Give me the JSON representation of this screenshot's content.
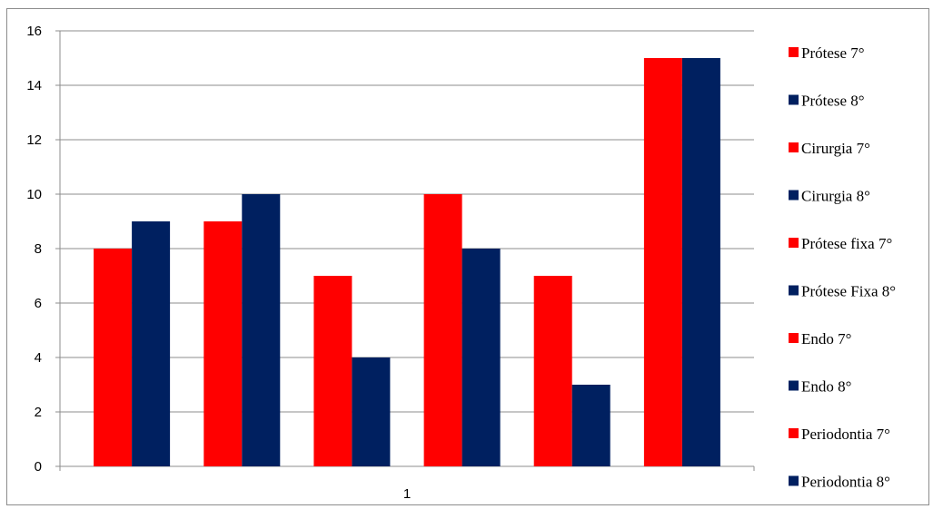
{
  "chart_data": {
    "type": "bar",
    "categories": [
      "1"
    ],
    "ylim": [
      0,
      16
    ],
    "yticks": [
      0,
      2,
      4,
      6,
      8,
      10,
      12,
      14,
      16
    ],
    "grid": true,
    "legend_position": "right",
    "series": [
      {
        "name": "Prótese 7°",
        "color": "#ff0000",
        "values": [
          8
        ]
      },
      {
        "name": "Prótese 8°",
        "color": "#002060",
        "values": [
          9
        ]
      },
      {
        "name": "Cirurgia 7°",
        "color": "#ff0000",
        "values": [
          9
        ]
      },
      {
        "name": "Cirurgia 8°",
        "color": "#002060",
        "values": [
          10
        ]
      },
      {
        "name": "Prótese fixa 7°",
        "color": "#ff0000",
        "values": [
          7
        ]
      },
      {
        "name": "Prótese Fixa 8°",
        "color": "#002060",
        "values": [
          4
        ]
      },
      {
        "name": "Endo 7°",
        "color": "#ff0000",
        "values": [
          10
        ]
      },
      {
        "name": "Endo 8°",
        "color": "#002060",
        "values": [
          8
        ]
      },
      {
        "name": "Periodontia 7°",
        "color": "#ff0000",
        "values": [
          7
        ]
      },
      {
        "name": "Periodontia 8°",
        "color": "#002060",
        "values": [
          3
        ]
      },
      {
        "name": "",
        "color": "#ff0000",
        "values": [
          15
        ]
      },
      {
        "name": "",
        "color": "#002060",
        "values": [
          15
        ]
      }
    ]
  }
}
